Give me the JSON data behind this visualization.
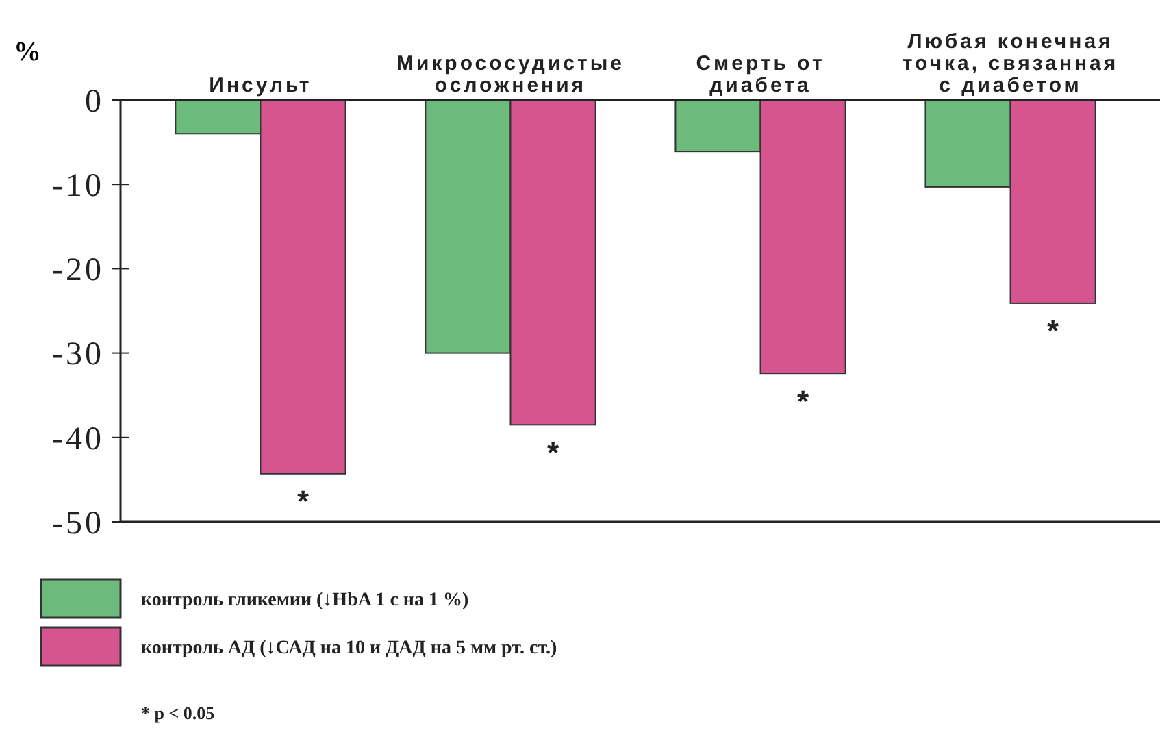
{
  "chart_data": {
    "type": "bar",
    "ylabel": "%",
    "categories": [
      "Инсульт",
      "Микрососудистые осложнения",
      "Смерть от диабета",
      "Любая конечная точка, связанная с диабетом"
    ],
    "series": [
      {
        "name": "контроль гликемии (↓HbA 1 c на 1 %)",
        "color": "#6cbb7c",
        "values": [
          -4.0,
          -30.0,
          -6.1,
          -10.3
        ]
      },
      {
        "name": "контроль АД (↓САД на 10 и ДАД на 5 мм рт. ст.)",
        "color": "#d6558f",
        "values": [
          -44.3,
          -38.5,
          -32.4,
          -24.1
        ]
      }
    ],
    "ylim": [
      -50,
      0
    ],
    "yticks": [
      0,
      -10,
      -20,
      -30,
      -40,
      -50
    ],
    "legend": "bottom left",
    "annotations": [
      {
        "text": "*",
        "x": "Инсульт",
        "y": -44.3
      },
      {
        "text": "*",
        "x": "Микрососудистые осложнения",
        "y": -38.5
      },
      {
        "text": "*",
        "x": "Смерть от диабета",
        "y": -32.4
      },
      {
        "text": "*",
        "x": "Любая конечная точка, связанная с диабетом",
        "y": -24.1
      },
      "* p < 0.05"
    ]
  }
}
